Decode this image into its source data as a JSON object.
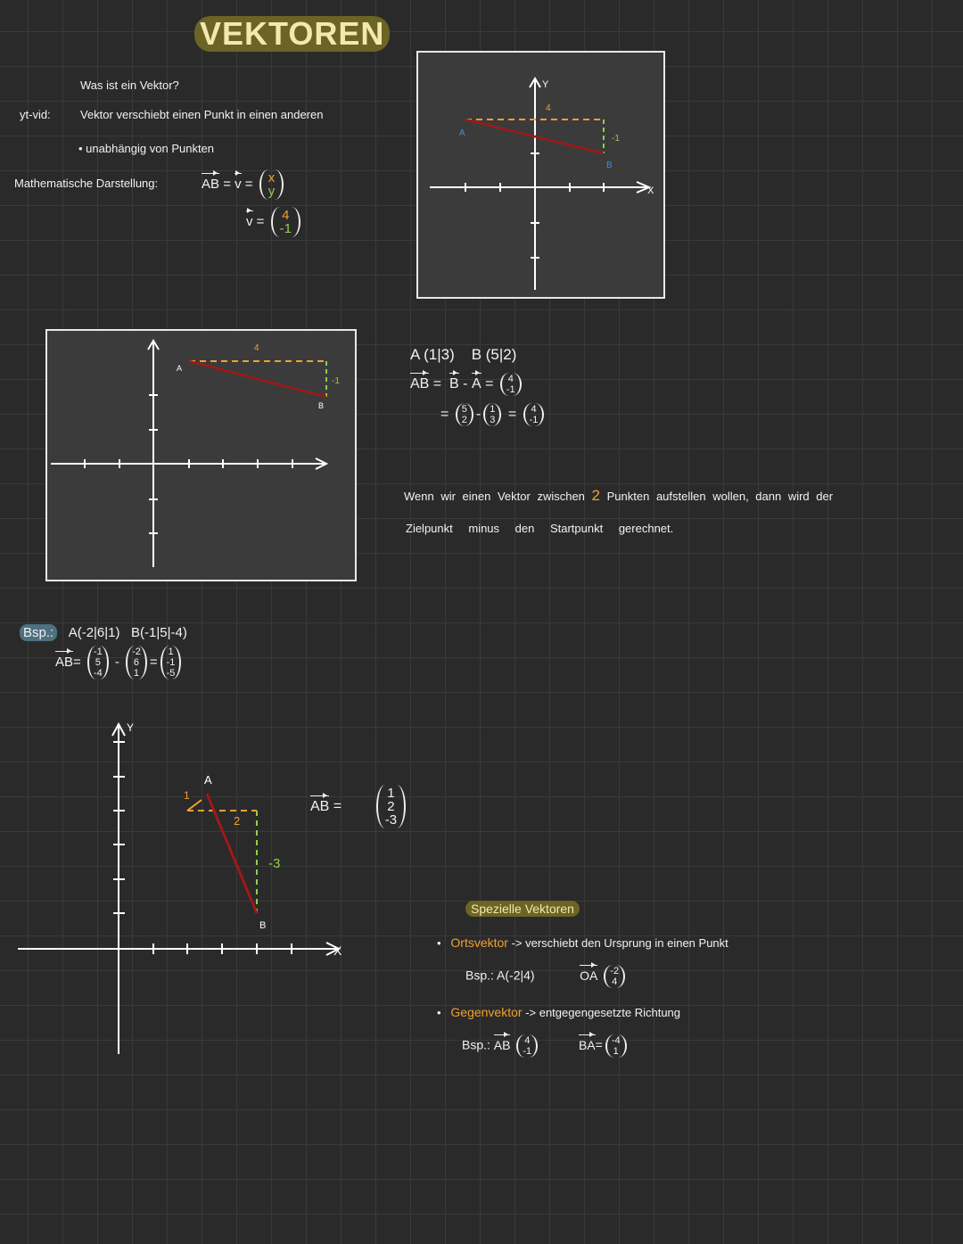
{
  "title": "VEKTOREN",
  "intro": {
    "question": "Was ist ein Vektor?",
    "source_label": "yt-vid:",
    "definition": "Vektor verschiebt einen Punkt in einen anderen",
    "bullet": "unabhängig von Punkten",
    "math_label": "Mathematische Darstellung:",
    "ab": "AB",
    "v": "v",
    "eq": "=",
    "vec_xy": [
      "x",
      "y"
    ],
    "vec_example": [
      "4",
      "-1"
    ]
  },
  "diagram_top": {
    "y_label": "Y",
    "x_label": "X",
    "a_label": "A",
    "b_label": "B",
    "dx": "4",
    "dy": "-1"
  },
  "diagram_mid": {
    "a_label": "A",
    "b_label": "B",
    "dx": "4",
    "dy": "-1"
  },
  "calc": {
    "point_a": "A (1|3)",
    "point_b": "B (5|2)",
    "ab": "AB",
    "b": "B",
    "a": "A",
    "eq": "=",
    "minus": "-",
    "result": [
      "4",
      "-1"
    ],
    "b_vec": [
      "5",
      "2"
    ],
    "a_vec": [
      "1",
      "3"
    ]
  },
  "explanation": {
    "line1_pre": "Wenn wir einen Vektor zwischen",
    "highlight": "2",
    "line1_post": "Punkten aufstellen wollen, dann wird der",
    "line2": "Zielpunkt minus den Startpunkt gerechnet."
  },
  "example": {
    "label": "Bsp.:",
    "point_a": "A(-2|6|1)",
    "point_b": "B(-1|5|-4)",
    "ab": "AB",
    "eq": "=",
    "minus": "-",
    "b_vec": [
      "-1",
      "5",
      "-4"
    ],
    "a_vec": [
      "-2",
      "6",
      "1"
    ],
    "result": [
      "1",
      "-1",
      "-5"
    ]
  },
  "diagram_bottom": {
    "y_label": "Y",
    "x_label": "X",
    "a_label": "A",
    "b_label": "B",
    "dz": "1",
    "dx": "2",
    "dy": "-3",
    "ab": "AB",
    "eq": "=",
    "result": [
      "1",
      "2",
      "-3"
    ]
  },
  "special": {
    "heading": "Spezielle Vektoren",
    "items": [
      {
        "name": "Ortsvektor",
        "desc": "-> verschiebt den Ursprung in einen Punkt",
        "ex_label": "Bsp.:",
        "ex_point": "A(-2|4)",
        "ex_vec_name": "OA",
        "ex_vec": [
          "-2",
          "4"
        ]
      },
      {
        "name": "Gegenvektor",
        "desc": "-> entgegengesetzte Richtung",
        "ex_label": "Bsp.:",
        "ex_vec_name": "AB",
        "ex_vec": [
          "4",
          "-1"
        ],
        "ex_res_name": "BA",
        "eq": "=",
        "ex_res": [
          "-4",
          "1"
        ]
      }
    ]
  },
  "colors": {
    "accent_orange": "#f0a030",
    "accent_green": "#8fd04a",
    "vector_red": "#a01818",
    "point_blue": "#3a8ee0",
    "highlight": "#6b6424"
  }
}
